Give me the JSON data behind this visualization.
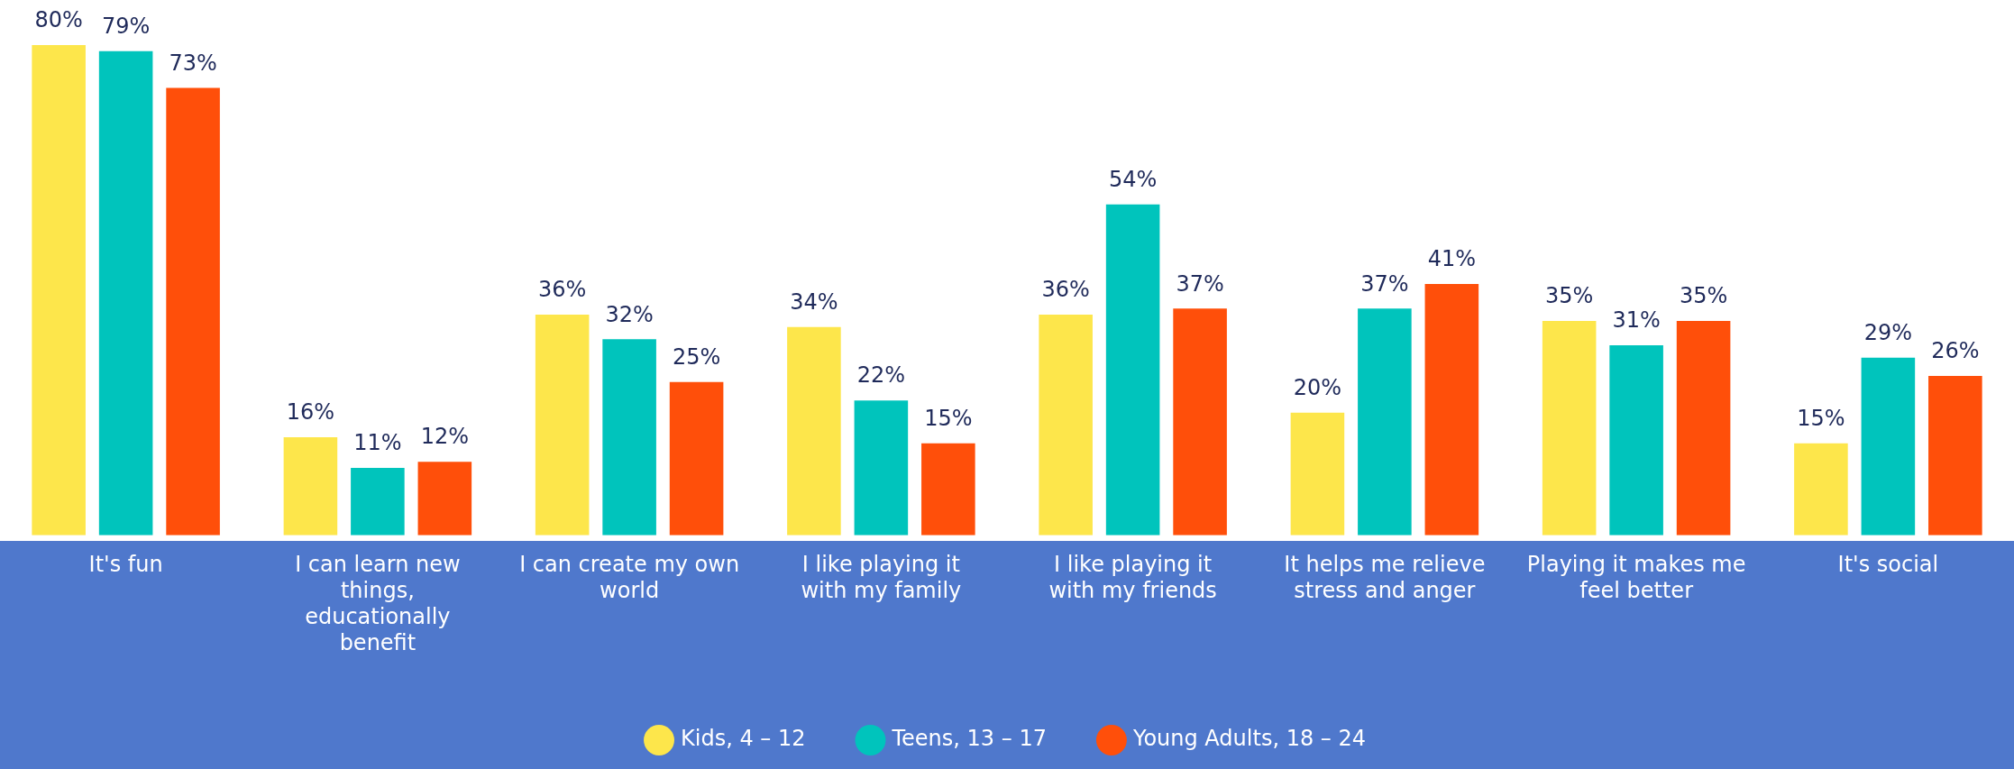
{
  "chart_data": {
    "type": "bar",
    "categories": [
      "It's fun",
      "I can learn new things, educationally benefit",
      "I can create my own world",
      "I like playing it with my family",
      "I like playing it with my friends",
      "It helps me relieve stress and anger",
      "Playing it makes me feel better",
      "It's social"
    ],
    "series": [
      {
        "name": "Kids, 4 – 12",
        "color": "#fde64b",
        "values": [
          80,
          16,
          36,
          34,
          36,
          20,
          35,
          15
        ],
        "value_labels": [
          "80%",
          "16%",
          "36%",
          "34%",
          "36%",
          "20%",
          "35%",
          "15%"
        ]
      },
      {
        "name": "Teens, 13 – 17",
        "color": "#00c4bc",
        "values": [
          79,
          11,
          32,
          22,
          54,
          37,
          31,
          29
        ],
        "value_labels": [
          "79%",
          "11%",
          "32%",
          "22%",
          "54%",
          "37%",
          "31%",
          "29%"
        ]
      },
      {
        "name": "Young Adults, 18 – 24",
        "color": "#ff4f0a",
        "values": [
          73,
          12,
          25,
          15,
          37,
          41,
          35,
          26
        ],
        "value_labels": [
          "73%",
          "12%",
          "25%",
          "15%",
          "37%",
          "41%",
          "35%",
          "26%"
        ]
      }
    ],
    "legend": "bottom",
    "grid": false
  }
}
